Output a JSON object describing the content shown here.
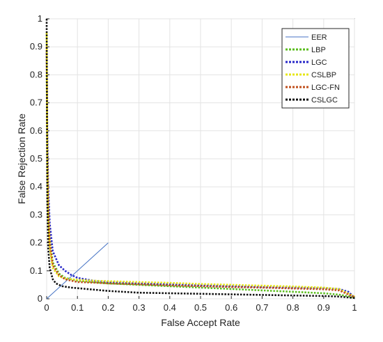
{
  "chart_data": {
    "type": "line",
    "title": "",
    "xlabel": "False Accept Rate",
    "ylabel": "False Rejection Rate",
    "xlim": [
      0,
      1
    ],
    "ylim": [
      0,
      1
    ],
    "x_ticks": [
      "0",
      "0.1",
      "0.2",
      "0.3",
      "0.4",
      "0.5",
      "0.6",
      "0.7",
      "0.8",
      "0.9",
      "1"
    ],
    "y_ticks": [
      "0",
      "0.1",
      "0.2",
      "0.3",
      "0.4",
      "0.5",
      "0.6",
      "0.7",
      "0.8",
      "0.9",
      "1"
    ],
    "grid": true,
    "legend_position": "top-right",
    "series": [
      {
        "name": "EER",
        "color": "#4472c4",
        "style": "solid",
        "x": [
          0,
          0.2
        ],
        "y": [
          0,
          0.2
        ]
      },
      {
        "name": "LBP",
        "color": "#5bbd1e",
        "style": "dotted",
        "x": [
          0,
          0.002,
          0.005,
          0.01,
          0.02,
          0.04,
          0.06,
          0.1,
          0.15,
          0.2,
          0.3,
          0.4,
          0.5,
          0.6,
          0.7,
          0.8,
          0.9,
          0.95,
          1.0
        ],
        "y": [
          0.8,
          0.55,
          0.35,
          0.22,
          0.13,
          0.09,
          0.075,
          0.065,
          0.06,
          0.055,
          0.05,
          0.045,
          0.04,
          0.035,
          0.03,
          0.025,
          0.02,
          0.015,
          0.005
        ]
      },
      {
        "name": "LGC",
        "color": "#2828c8",
        "style": "dotted",
        "x": [
          0,
          0.002,
          0.005,
          0.01,
          0.02,
          0.04,
          0.06,
          0.08,
          0.1,
          0.15,
          0.2,
          0.3,
          0.4,
          0.5,
          0.6,
          0.7,
          0.8,
          0.9,
          0.95,
          0.98,
          1.0
        ],
        "y": [
          0.88,
          0.6,
          0.4,
          0.27,
          0.17,
          0.12,
          0.1,
          0.085,
          0.075,
          0.065,
          0.06,
          0.055,
          0.052,
          0.048,
          0.045,
          0.042,
          0.04,
          0.038,
          0.035,
          0.025,
          0.005
        ]
      },
      {
        "name": "CSLBP",
        "color": "#e6e614",
        "style": "dotted",
        "x": [
          0,
          0.002,
          0.005,
          0.01,
          0.02,
          0.04,
          0.06,
          0.1,
          0.15,
          0.2,
          0.3,
          0.4,
          0.5,
          0.6,
          0.7,
          0.8,
          0.9,
          0.95,
          1.0
        ],
        "y": [
          0.95,
          0.5,
          0.3,
          0.18,
          0.11,
          0.08,
          0.072,
          0.068,
          0.065,
          0.063,
          0.06,
          0.057,
          0.053,
          0.05,
          0.047,
          0.044,
          0.04,
          0.035,
          0.008
        ]
      },
      {
        "name": "LGC-FN",
        "color": "#c0501e",
        "style": "dotted",
        "x": [
          0,
          0.002,
          0.005,
          0.01,
          0.02,
          0.04,
          0.06,
          0.1,
          0.15,
          0.2,
          0.3,
          0.4,
          0.5,
          0.6,
          0.7,
          0.8,
          0.9,
          0.95,
          1.0
        ],
        "y": [
          0.9,
          0.52,
          0.32,
          0.2,
          0.12,
          0.085,
          0.07,
          0.06,
          0.058,
          0.055,
          0.052,
          0.048,
          0.045,
          0.042,
          0.04,
          0.037,
          0.034,
          0.03,
          0.006
        ]
      },
      {
        "name": "CSLGC",
        "color": "#111111",
        "style": "dotted",
        "x": [
          0,
          0.002,
          0.005,
          0.01,
          0.02,
          0.03,
          0.05,
          0.08,
          0.1,
          0.15,
          0.2,
          0.3,
          0.4,
          0.5,
          0.6,
          0.7,
          0.8,
          0.9,
          0.95,
          1.0
        ],
        "y": [
          1.0,
          0.35,
          0.18,
          0.11,
          0.07,
          0.055,
          0.045,
          0.04,
          0.038,
          0.033,
          0.028,
          0.022,
          0.02,
          0.018,
          0.016,
          0.014,
          0.012,
          0.01,
          0.008,
          0.003
        ]
      }
    ]
  }
}
